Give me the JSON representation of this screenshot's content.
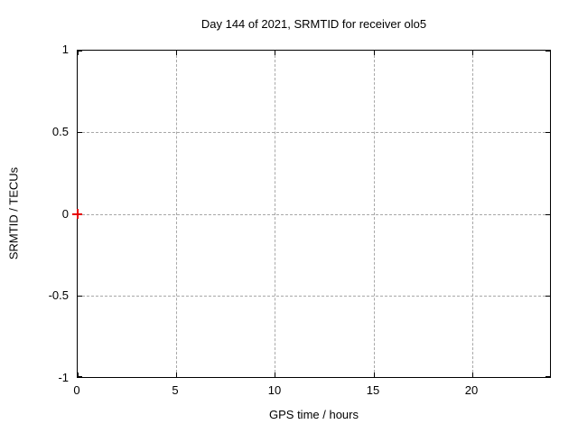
{
  "chart_data": {
    "type": "scatter",
    "title": "Day 144 of 2021, SRMTID for receiver olo5",
    "xlabel": "GPS time / hours",
    "ylabel": "SRMTID / TECUs",
    "xlim": [
      0,
      24
    ],
    "ylim": [
      -1,
      1
    ],
    "xticks": [
      0,
      5,
      10,
      15,
      20
    ],
    "yticks": [
      1,
      0.5,
      0,
      -0.5,
      -1
    ],
    "xtick_labels": [
      "0",
      "5",
      "10",
      "15",
      "20"
    ],
    "ytick_labels": [
      "1",
      "0.5",
      "0",
      "-0.5",
      "-1"
    ],
    "grid": "dashed, at major ticks, on",
    "legend_position": "none",
    "series": [
      {
        "name": "SRMTID",
        "marker": "plus",
        "marker_color": "#e60000",
        "points": [
          {
            "x": 0,
            "y": 0
          }
        ]
      }
    ]
  },
  "colors": {
    "background": "#ffffff",
    "axis_border": "#000000",
    "grid": "#a8a8a8",
    "text": "#000000",
    "marker": "#e60000"
  }
}
